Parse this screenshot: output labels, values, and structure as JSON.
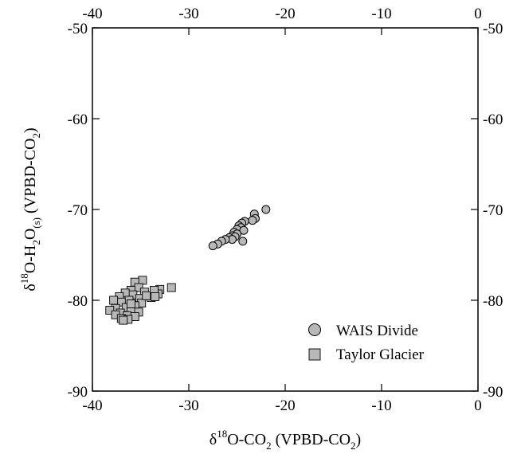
{
  "chart_data": {
    "type": "scatter",
    "xlabel": {
      "prefix": "δ",
      "sup": "18",
      "main": "O-CO",
      "sub": "2",
      "suffix": " (VPBD-CO",
      "sub2": "2",
      "close": ")"
    },
    "ylabel": {
      "prefix": "δ",
      "sup": "18",
      "main": "O-H",
      "sub": "2",
      "mid": "O",
      "sub_s": "(s)",
      "suffix": " (VPBD-CO",
      "sub2": "2",
      "close": ")"
    },
    "xlim": [
      -40,
      0
    ],
    "ylim": [
      -90,
      -50
    ],
    "xticks": [
      -40,
      -30,
      -20,
      -10,
      0
    ],
    "yticks": [
      -90,
      -80,
      -70,
      -60,
      -50
    ],
    "xtick_labels": [
      "-40",
      "-30",
      "-20",
      "-10",
      "0"
    ],
    "ytick_labels": [
      "-90",
      "-80",
      "-70",
      "-60",
      "-50"
    ],
    "grid": false,
    "legend_position": "bottom-right",
    "series": [
      {
        "name": "WAIS Divide",
        "marker": "circle",
        "color": "#b8b8b8",
        "points": [
          [
            -22.0,
            -70.0
          ],
          [
            -23.2,
            -70.5
          ],
          [
            -23.1,
            -71.0
          ],
          [
            -23.4,
            -71.2
          ],
          [
            -24.2,
            -71.3
          ],
          [
            -24.5,
            -71.5
          ],
          [
            -24.8,
            -71.8
          ],
          [
            -24.6,
            -72.0
          ],
          [
            -25.0,
            -72.2
          ],
          [
            -24.3,
            -72.3
          ],
          [
            -25.3,
            -72.5
          ],
          [
            -25.0,
            -72.7
          ],
          [
            -25.5,
            -72.9
          ],
          [
            -25.2,
            -73.0
          ],
          [
            -25.8,
            -73.1
          ],
          [
            -25.5,
            -73.3
          ],
          [
            -26.2,
            -73.3
          ],
          [
            -26.6,
            -73.5
          ],
          [
            -24.4,
            -73.5
          ],
          [
            -27.0,
            -73.8
          ],
          [
            -27.5,
            -74.0
          ]
        ]
      },
      {
        "name": "Taylor Glacier",
        "marker": "square",
        "color": "#b8b8b8",
        "points": [
          [
            -31.8,
            -78.6
          ],
          [
            -33.0,
            -78.8
          ],
          [
            -33.2,
            -79.3
          ],
          [
            -33.6,
            -78.9
          ],
          [
            -33.9,
            -79.7
          ],
          [
            -34.8,
            -77.8
          ],
          [
            -35.6,
            -78.0
          ],
          [
            -35.2,
            -78.6
          ],
          [
            -36.0,
            -78.9
          ],
          [
            -34.6,
            -79.1
          ],
          [
            -35.8,
            -79.4
          ],
          [
            -36.6,
            -79.2
          ],
          [
            -37.2,
            -79.6
          ],
          [
            -35.1,
            -79.8
          ],
          [
            -36.2,
            -80.0
          ],
          [
            -37.0,
            -80.2
          ],
          [
            -34.9,
            -80.3
          ],
          [
            -35.6,
            -80.6
          ],
          [
            -36.5,
            -80.8
          ],
          [
            -37.6,
            -80.9
          ],
          [
            -38.2,
            -81.1
          ],
          [
            -36.0,
            -81.2
          ],
          [
            -35.2,
            -81.3
          ],
          [
            -37.1,
            -81.4
          ],
          [
            -37.6,
            -81.6
          ],
          [
            -36.4,
            -81.7
          ],
          [
            -35.6,
            -81.8
          ],
          [
            -37.0,
            -82.0
          ],
          [
            -36.3,
            -82.1
          ],
          [
            -36.8,
            -82.2
          ],
          [
            -36.0,
            -80.4
          ],
          [
            -34.4,
            -79.5
          ],
          [
            -33.5,
            -79.6
          ],
          [
            -37.8,
            -80.0
          ]
        ]
      }
    ]
  }
}
